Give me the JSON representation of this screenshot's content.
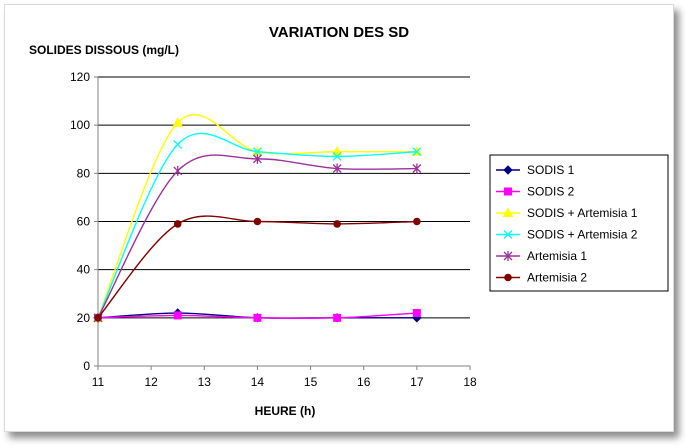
{
  "chart_data": {
    "type": "line",
    "title": "VARIATION DES  SD",
    "ylabel": "SOLIDES DISSOUS (mg/L)",
    "xlabel": "HEURE (h)",
    "xlim": [
      11,
      18
    ],
    "ylim": [
      0,
      120
    ],
    "xticks": [
      "11",
      "12",
      "13",
      "14",
      "15",
      "16",
      "17",
      "18"
    ],
    "yticks": [
      "0",
      "20",
      "40",
      "60",
      "80",
      "100",
      "120"
    ],
    "grid": "horizontal",
    "legend_position": "right",
    "x": [
      11,
      12.5,
      14,
      15.5,
      17
    ],
    "series": [
      {
        "name": "SODIS 1",
        "color": "#000080",
        "marker": "diamond",
        "values": [
          20,
          22,
          20,
          20,
          20
        ]
      },
      {
        "name": "SODIS 2",
        "color": "#ff00ff",
        "marker": "square",
        "values": [
          20,
          21,
          20,
          20,
          22
        ]
      },
      {
        "name": "SODIS + Artemisia 1",
        "color": "#ffff00",
        "marker": "triangle",
        "values": [
          20,
          101,
          89,
          89,
          89
        ]
      },
      {
        "name": "SODIS + Artemisia 2",
        "color": "#00ffff",
        "marker": "x",
        "values": [
          20,
          92,
          89,
          87,
          89
        ]
      },
      {
        "name": "Artemisia 1",
        "color": "#993399",
        "marker": "star",
        "values": [
          20,
          81,
          86,
          82,
          82
        ]
      },
      {
        "name": "Artemisia 2",
        "color": "#800000",
        "marker": "circle",
        "values": [
          20,
          59,
          60,
          59,
          60
        ]
      }
    ]
  }
}
